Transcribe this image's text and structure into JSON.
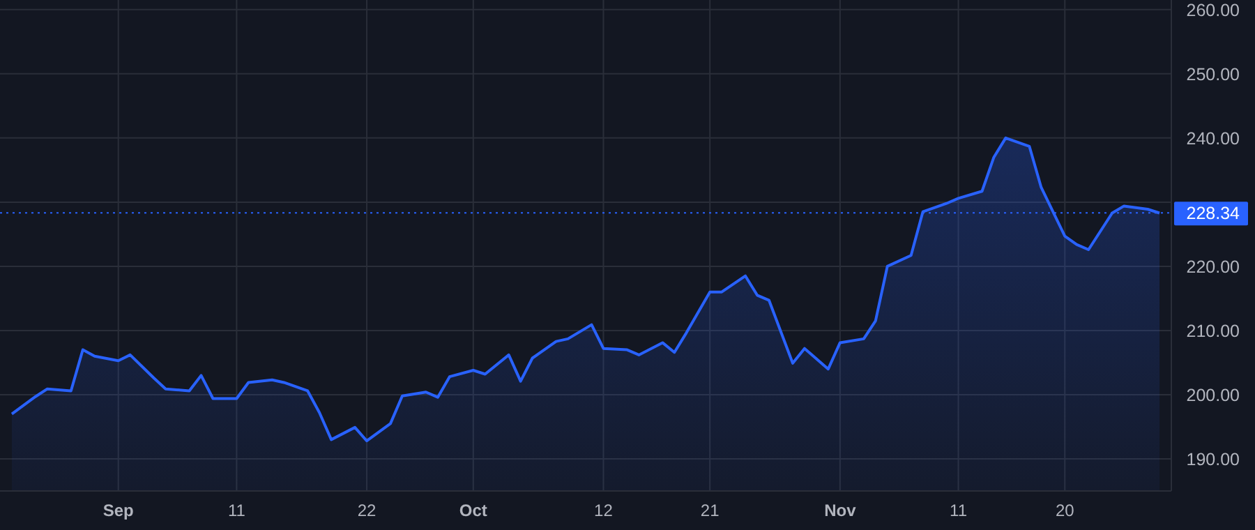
{
  "chart_data": {
    "type": "area",
    "x": [
      "--08-23",
      "--08-25",
      "--08-26",
      "--08-28",
      "--08-29",
      "--08-30",
      "--09-01",
      "--09-02",
      "--09-04",
      "--09-05",
      "--09-07",
      "--09-08",
      "--09-09",
      "--09-11",
      "--09-12",
      "--09-14",
      "--09-15",
      "--09-17",
      "--09-18",
      "--09-19",
      "--09-21",
      "--09-22",
      "--09-24",
      "--09-25",
      "--09-27",
      "--09-28",
      "--09-29",
      "--10-01",
      "--10-02",
      "--10-04",
      "--10-05",
      "--10-06",
      "--10-08",
      "--10-09",
      "--10-11",
      "--10-12",
      "--10-14",
      "--10-15",
      "--10-17",
      "--10-18",
      "--10-19",
      "--10-21",
      "--10-22",
      "--10-24",
      "--10-25",
      "--10-26",
      "--10-28",
      "--10-29",
      "--10-31",
      "--11-01",
      "--11-03",
      "--11-04",
      "--11-05",
      "--11-07",
      "--11-08",
      "--11-10",
      "--11-11",
      "--11-13",
      "--11-14",
      "--11-15",
      "--11-17",
      "--11-18",
      "--11-20",
      "--11-21",
      "--11-22",
      "--11-24",
      "--11-25",
      "--11-27",
      "--11-28"
    ],
    "series": [
      {
        "color": "#2962ff",
        "values": [
          197.0,
          199.7,
          200.9,
          200.6,
          207.0,
          206.0,
          205.3,
          206.2,
          202.6,
          200.9,
          200.6,
          203.0,
          199.4,
          199.4,
          201.9,
          202.3,
          201.9,
          200.6,
          197.2,
          193.0,
          194.9,
          192.8,
          195.5,
          199.8,
          200.4,
          199.6,
          202.8,
          203.8,
          203.2,
          206.2,
          202.1,
          205.7,
          208.3,
          208.7,
          210.9,
          207.2,
          207.0,
          206.2,
          208.1,
          206.6,
          209.6,
          216.0,
          216.0,
          218.5,
          215.5,
          214.7,
          204.9,
          207.2,
          204.0,
          208.1,
          208.7,
          211.5,
          220.0,
          221.7,
          228.5,
          229.8,
          230.6,
          231.7,
          237.0,
          240.0,
          238.7,
          232.3,
          224.7,
          223.4,
          222.6,
          228.3,
          229.4,
          228.9,
          228.3
        ]
      }
    ],
    "xlim": [
      "--08-22",
      "--11-29"
    ],
    "xticks": [
      {
        "value": "--09-01",
        "label": "Sep"
      },
      {
        "value": "--09-11",
        "label": "11"
      },
      {
        "value": "--09-22",
        "label": "22"
      },
      {
        "value": "--10-01",
        "label": "Oct"
      },
      {
        "value": "--10-12",
        "label": "12"
      },
      {
        "value": "--10-21",
        "label": "21"
      },
      {
        "value": "--11-01",
        "label": "Nov"
      },
      {
        "value": "--11-11",
        "label": "11"
      },
      {
        "value": "--11-20",
        "label": "20"
      }
    ],
    "ylim": [
      185,
      261.5
    ],
    "yticks": [
      {
        "value": 190,
        "label": "190.00"
      },
      {
        "value": 200,
        "label": "200.00"
      },
      {
        "value": 210,
        "label": "210.00"
      },
      {
        "value": 220,
        "label": "220.00"
      },
      {
        "value": 230,
        "label": null
      },
      {
        "value": 240,
        "label": "240.00"
      },
      {
        "value": 250,
        "label": "250.00"
      },
      {
        "value": 260,
        "label": "260.00"
      }
    ],
    "grid": true,
    "ref_lines": [
      {
        "axis": "y",
        "value": 228.34,
        "label": "228.34",
        "color": "#2962ff",
        "line_style": "dotted"
      }
    ]
  }
}
